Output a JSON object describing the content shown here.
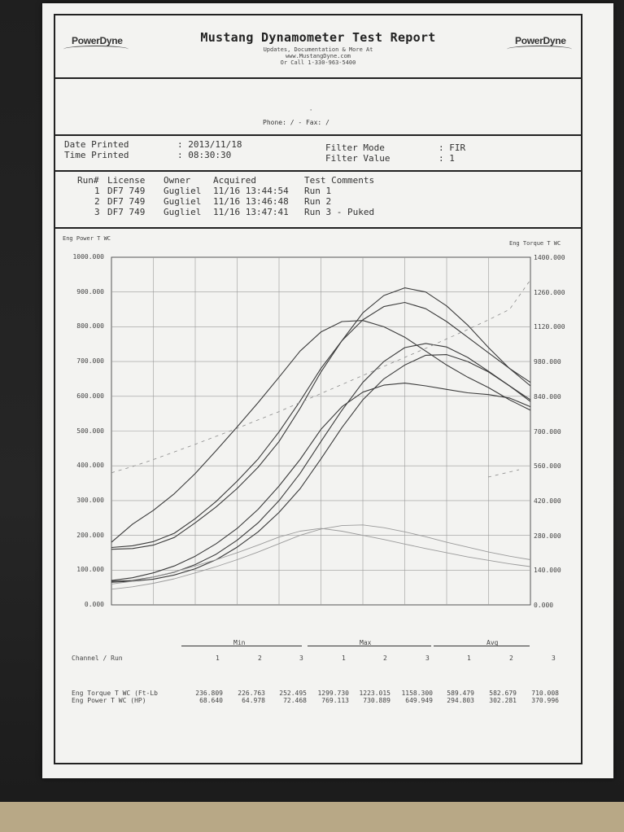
{
  "report": {
    "title": "Mustang Dynamometer Test Report",
    "sub1": "Updates, Documentation & More At",
    "sub2": "www.MustangDyne.com",
    "sub3": "Or Call 1-330-963-5400",
    "logo_text": "PowerDyne",
    "phone_line": "Phone:  /  - Fax:  /"
  },
  "meta": {
    "date_label": "Date Printed",
    "date_value": ": 2013/11/18",
    "time_label": "Time Printed",
    "time_value": ": 08:30:30",
    "filter_mode_label": "Filter Mode",
    "filter_mode_value": ": FIR",
    "filter_value_label": "Filter Value",
    "filter_value_value": ": 1"
  },
  "runs": {
    "headers": [
      "Run#",
      "License",
      "Owner",
      "Acquired",
      "Test Comments"
    ],
    "rows": [
      {
        "run": "1",
        "license": "DF7 749",
        "owner": "Gugliel",
        "acquired": "11/16 13:44:54",
        "comment": "Run 1"
      },
      {
        "run": "2",
        "license": "DF7 749",
        "owner": "Gugliel",
        "acquired": "11/16 13:46:48",
        "comment": "Run 2"
      },
      {
        "run": "3",
        "license": "DF7 749",
        "owner": "Gugliel",
        "acquired": "11/16 13:47:41",
        "comment": "Run 3 - Puked"
      }
    ]
  },
  "chart_data": {
    "type": "line",
    "left_axis_title": "Eng Power T WC",
    "right_axis_title": "Eng Torque T WC",
    "left_ticks": [
      "1000.000",
      "900.000",
      "800.000",
      "700.000",
      "600.000",
      "500.000",
      "400.000",
      "300.000",
      "200.000",
      "100.000",
      "0.000"
    ],
    "right_ticks": [
      "1400.000",
      "1260.000",
      "1120.000",
      "980.000",
      "840.000",
      "700.000",
      "560.000",
      "420.000",
      "280.000",
      "140.000",
      "0.000"
    ],
    "left_ylim": [
      0,
      1000
    ],
    "right_ylim": [
      0,
      1400
    ],
    "grid": true,
    "x": [
      0,
      1,
      2,
      3,
      4,
      5,
      6,
      7,
      8,
      9,
      10,
      11,
      12,
      13,
      14,
      15,
      16,
      17,
      18,
      19,
      20
    ],
    "series": [
      {
        "axis": "left",
        "style": "solid",
        "values": [
          180,
          232,
          272,
          320,
          378,
          444,
          512,
          582,
          655,
          730,
          785,
          815,
          818,
          800,
          770,
          730,
          690,
          655,
          625,
          590,
          560
        ]
      },
      {
        "axis": "left",
        "style": "solid",
        "values": [
          165,
          170,
          182,
          206,
          248,
          298,
          356,
          420,
          498,
          586,
          680,
          760,
          820,
          858,
          870,
          852,
          815,
          770,
          725,
          680,
          640
        ]
      },
      {
        "axis": "left",
        "style": "solid",
        "values": [
          160,
          162,
          172,
          194,
          236,
          282,
          335,
          396,
          470,
          565,
          670,
          760,
          840,
          890,
          912,
          900,
          860,
          805,
          740,
          680,
          630
        ]
      },
      {
        "axis": "left",
        "style": "solid",
        "values": [
          70,
          78,
          92,
          112,
          140,
          176,
          220,
          275,
          342,
          418,
          505,
          570,
          612,
          632,
          638,
          630,
          620,
          610,
          605,
          595,
          570
        ]
      },
      {
        "axis": "left",
        "style": "solid",
        "values": [
          68,
          70,
          80,
          94,
          116,
          146,
          186,
          236,
          300,
          378,
          470,
          560,
          640,
          700,
          740,
          752,
          742,
          712,
          672,
          630,
          585
        ]
      },
      {
        "axis": "left",
        "style": "solid",
        "values": [
          65,
          68,
          74,
          86,
          104,
          130,
          166,
          210,
          266,
          334,
          420,
          510,
          590,
          650,
          690,
          718,
          720,
          700,
          670,
          630,
          590
        ]
      },
      {
        "axis": "left",
        "style": "light",
        "values": [
          60,
          68,
          80,
          95,
          112,
          130,
          150,
          172,
          195,
          212,
          220,
          212,
          200,
          188,
          175,
          162,
          150,
          138,
          128,
          118,
          110
        ]
      },
      {
        "axis": "left",
        "style": "light",
        "values": [
          45,
          52,
          62,
          75,
          92,
          110,
          130,
          152,
          176,
          200,
          218,
          228,
          230,
          222,
          210,
          196,
          180,
          166,
          152,
          140,
          130
        ]
      },
      {
        "axis": "left",
        "style": "dashed",
        "values": [
          380,
          398,
          418,
          440,
          462,
          485,
          508,
          532,
          556,
          582,
          608,
          634,
          660,
          686,
          712,
          738,
          765,
          792,
          820,
          850,
          935
        ]
      }
    ]
  },
  "stats": {
    "group_labels": [
      "Min",
      "Max",
      "Avg"
    ],
    "channel_header": "Channel / Run",
    "run_numbers": [
      "1",
      "2",
      "3",
      "1",
      "2",
      "3",
      "1",
      "2",
      "3"
    ],
    "rows": [
      {
        "label": "Eng Torque T WC (Ft-Lb",
        "values": [
          "236.809",
          "226.763",
          "252.495",
          "1299.730",
          "1223.015",
          "1158.300",
          "589.479",
          "582.679",
          "710.008"
        ]
      },
      {
        "label": "Eng Power T WC (HP)",
        "values": [
          "68.640",
          "64.978",
          "72.468",
          "769.113",
          "730.889",
          "649.949",
          "294.803",
          "302.281",
          "370.996"
        ]
      }
    ]
  }
}
